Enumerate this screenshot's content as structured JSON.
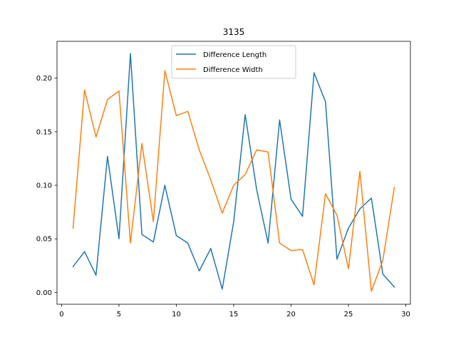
{
  "chart_data": {
    "type": "line",
    "title": "3135",
    "xlabel": "",
    "ylabel": "",
    "xlim": [
      -0.4,
      30.4
    ],
    "ylim": [
      -0.0111,
      0.2344
    ],
    "x_ticks": [
      0,
      5,
      10,
      15,
      20,
      25,
      30
    ],
    "y_ticks": [
      0.0,
      0.05,
      0.1,
      0.15,
      0.2
    ],
    "x_tick_labels": [
      "0",
      "5",
      "10",
      "15",
      "20",
      "25",
      "30"
    ],
    "y_tick_labels": [
      "0.00",
      "0.05",
      "0.10",
      "0.15",
      "0.20"
    ],
    "grid": false,
    "legend_position": "upper center",
    "x": [
      1,
      2,
      3,
      4,
      5,
      6,
      7,
      8,
      9,
      10,
      11,
      12,
      13,
      14,
      15,
      16,
      17,
      18,
      19,
      20,
      21,
      22,
      23,
      24,
      25,
      26,
      27,
      28,
      29
    ],
    "series": [
      {
        "name": "Difference Length",
        "color": "#1f77b4",
        "values": [
          0.024,
          0.038,
          0.016,
          0.127,
          0.05,
          0.223,
          0.054,
          0.047,
          0.1,
          0.053,
          0.046,
          0.02,
          0.041,
          0.003,
          0.066,
          0.166,
          0.096,
          0.046,
          0.161,
          0.087,
          0.071,
          0.205,
          0.178,
          0.031,
          0.06,
          0.078,
          0.088,
          0.017,
          0.005
        ]
      },
      {
        "name": "Difference Width",
        "color": "#ff7f0e",
        "values": [
          0.06,
          0.189,
          0.145,
          0.18,
          0.188,
          0.046,
          0.139,
          0.066,
          0.207,
          0.165,
          0.169,
          0.133,
          0.105,
          0.074,
          0.1,
          0.11,
          0.133,
          0.131,
          0.046,
          0.039,
          0.04,
          0.007,
          0.092,
          0.072,
          0.022,
          0.113,
          0.001,
          0.03,
          0.098
        ]
      }
    ]
  }
}
